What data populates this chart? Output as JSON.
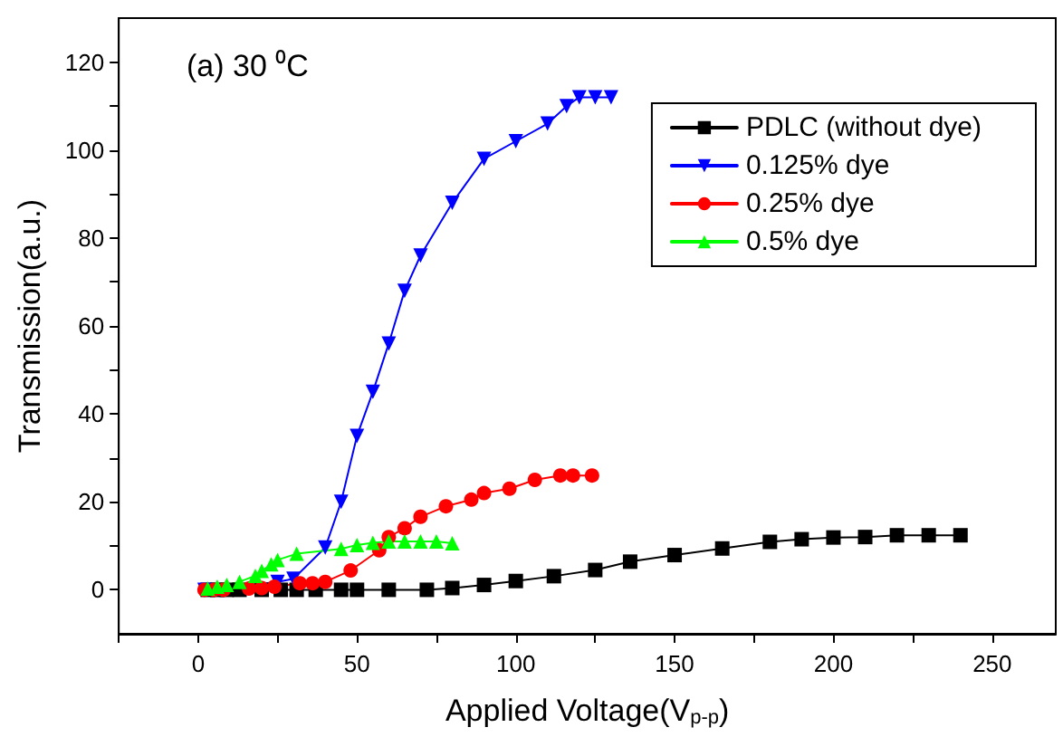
{
  "chart_data": {
    "type": "line",
    "xlabel": "Applied Voltage(V$_{p-p}$)",
    "ylabel": "Transmission(a.u.)",
    "annotations": [
      "(a) 30 ⁰C"
    ],
    "xlim": [
      -25,
      270
    ],
    "xticks": [
      {
        "value": -25,
        "label": null
      },
      0,
      {
        "value": 25,
        "label": null
      },
      50,
      {
        "value": 75,
        "label": null
      },
      100,
      {
        "value": 125,
        "label": null
      },
      150,
      {
        "value": 175,
        "label": null
      },
      200,
      {
        "value": 225,
        "label": null
      },
      250
    ],
    "ylim": [
      -10,
      130
    ],
    "yticks": [
      0,
      {
        "value": 10,
        "label": null
      },
      20,
      {
        "value": 30,
        "label": null
      },
      40,
      {
        "value": 50,
        "label": null
      },
      60,
      {
        "value": 70,
        "label": null
      },
      80,
      {
        "value": 90,
        "label": null
      },
      100,
      {
        "value": 110,
        "label": null
      },
      120
    ],
    "grid": false,
    "legend": "top right",
    "line_style": "solid",
    "series": [
      {
        "name": "PDLC (without dye)",
        "color": "#000000",
        "marker": "square",
        "x": [
          3,
          6,
          9,
          13,
          20,
          26,
          31,
          37,
          45,
          50,
          60,
          72,
          80,
          90,
          100,
          112,
          125,
          136,
          150,
          165,
          180,
          190,
          200,
          210,
          220,
          230,
          240
        ],
        "values": [
          0,
          0,
          0,
          0,
          0,
          0,
          0,
          0,
          0,
          0,
          0,
          0,
          0.4,
          1.1,
          2,
          3.1,
          4.5,
          6.4,
          7.9,
          9.4,
          10.9,
          11.5,
          11.9,
          12,
          12.4,
          12.4,
          12.4
        ]
      },
      {
        "name": "0.125% dye",
        "color": "#0000ff",
        "marker": "triangle-down",
        "x": [
          2,
          25,
          30,
          40,
          45,
          50,
          55,
          60,
          65,
          70,
          80,
          90,
          100,
          110,
          116,
          120,
          125,
          130
        ],
        "values": [
          0,
          1.8,
          2.5,
          9.6,
          20,
          35,
          45,
          56,
          68,
          76,
          88,
          98,
          102,
          106,
          110,
          112,
          112,
          112
        ]
      },
      {
        "name": "0.25% dye",
        "color": "#ff0000",
        "marker": "circle",
        "x": [
          2,
          5,
          8,
          16,
          20,
          24,
          32,
          36,
          40,
          48,
          57,
          60,
          65,
          70,
          78,
          86,
          90,
          98,
          106,
          114,
          118,
          124
        ],
        "values": [
          0,
          0,
          0,
          0.3,
          0.4,
          0.7,
          1.5,
          1.5,
          1.8,
          4.4,
          9,
          12,
          14,
          16.6,
          19,
          20.5,
          22,
          23,
          25,
          26,
          26,
          26
        ]
      },
      {
        "name": "0.5% dye",
        "color": "#00ff00",
        "marker": "triangle",
        "x": [
          3,
          6,
          9,
          13,
          18,
          20,
          23,
          25,
          31,
          45,
          50,
          55,
          60,
          65,
          70,
          75,
          80
        ],
        "values": [
          0.3,
          0.7,
          1.1,
          1.8,
          3.2,
          4.3,
          5.8,
          6.8,
          8.2,
          9.3,
          10.2,
          10.7,
          11,
          11,
          11,
          11,
          10.6
        ]
      }
    ]
  }
}
